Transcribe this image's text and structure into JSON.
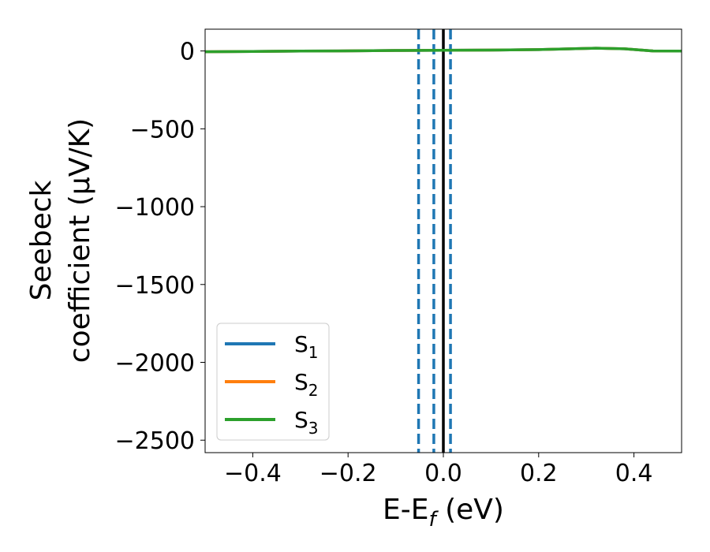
{
  "chart_data": {
    "type": "line",
    "xlabel": "E-E",
    "xlabel_sub": "f",
    "xlabel_unit": " (eV)",
    "ylabel_line1": "Seebeck",
    "ylabel_line2": "coefficient  (μV/K)",
    "xlim": [
      -0.5,
      0.5
    ],
    "ylim": [
      -2580,
      140
    ],
    "xticks": [
      -0.4,
      -0.2,
      0.0,
      0.2,
      0.4
    ],
    "xtick_labels": [
      "−0.4",
      "−0.2",
      "0.0",
      "0.2",
      "0.4"
    ],
    "yticks": [
      0,
      -500,
      -1000,
      -1500,
      -2000,
      -2500
    ],
    "ytick_labels": [
      "0",
      "−500",
      "−1000",
      "−1500",
      "−2000",
      "−2500"
    ],
    "grid": false,
    "legend_position": "bottom-left",
    "series": [
      {
        "name": "S",
        "sub": "1",
        "color": "#1f77b4",
        "x": [
          -0.5,
          -0.4,
          -0.3,
          -0.22,
          -0.1,
          0.0,
          0.1,
          0.2,
          0.32,
          0.38,
          0.44,
          0.5
        ],
        "y": [
          -5,
          -3,
          -1,
          0,
          3,
          5,
          6,
          9,
          18,
          14,
          0,
          -1
        ]
      },
      {
        "name": "S",
        "sub": "2",
        "color": "#ff7f0e",
        "x": [
          -0.5,
          -0.4,
          -0.3,
          -0.22,
          -0.1,
          0.0,
          0.1,
          0.2,
          0.32,
          0.38,
          0.44,
          0.5
        ],
        "y": [
          -5,
          -3,
          -1,
          0,
          3,
          5,
          6,
          9,
          18,
          14,
          0,
          -1
        ]
      },
      {
        "name": "S",
        "sub": "3",
        "color": "#2ca02c",
        "x": [
          -0.5,
          -0.4,
          -0.3,
          -0.22,
          -0.1,
          0.0,
          0.1,
          0.2,
          0.32,
          0.38,
          0.44,
          0.5
        ],
        "y": [
          -5,
          -3,
          -1,
          0,
          3,
          5,
          6,
          9,
          18,
          14,
          0,
          -1
        ]
      }
    ],
    "vlines": [
      {
        "x": 0.0,
        "style": "solid",
        "color": "#000000"
      },
      {
        "x": -0.052,
        "style": "dashed",
        "color": "#1f77b4"
      },
      {
        "x": -0.02,
        "style": "dashed",
        "color": "#1f77b4"
      },
      {
        "x": 0.015,
        "style": "dashed",
        "color": "#1f77b4"
      }
    ]
  }
}
